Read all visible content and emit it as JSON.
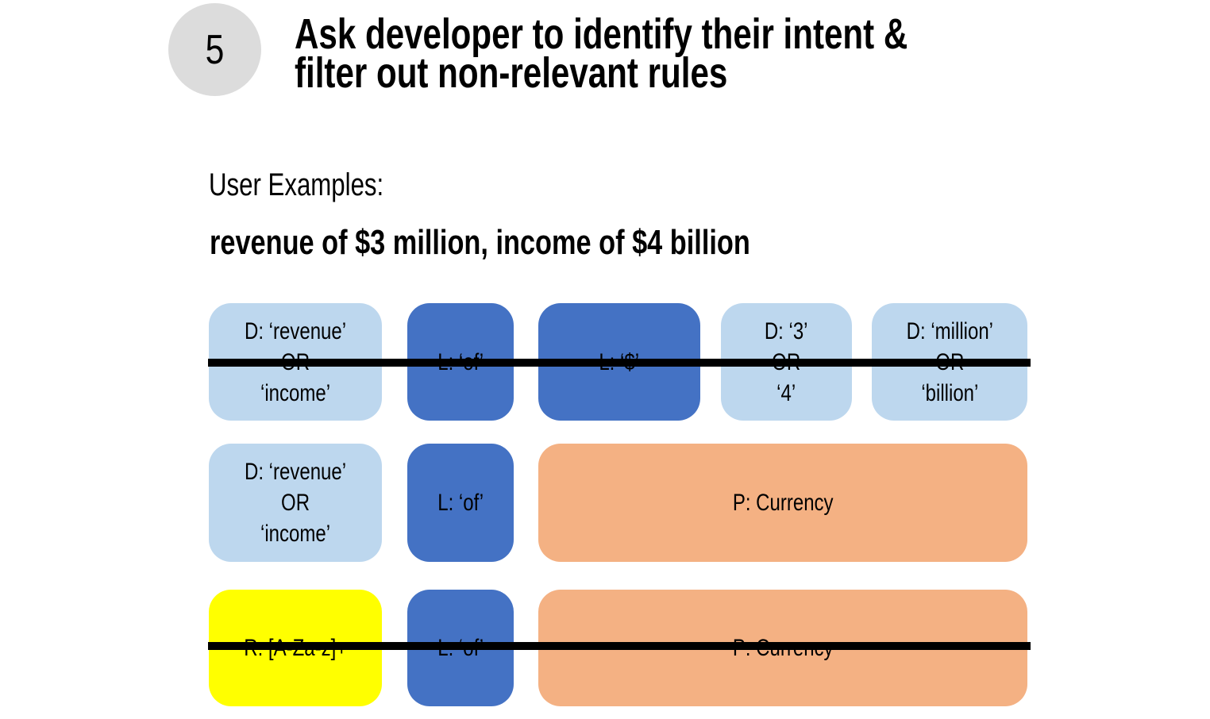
{
  "slide": {
    "step_number": "5",
    "title_line1": "Ask developer to identify their intent &",
    "title_line2": "filter out non-relevant rules",
    "examples_label": "User Examples:",
    "example_text": "revenue of $3 million, income of $4 billion"
  },
  "colors": {
    "dictionary_light_blue": "#BDD7EE",
    "literal_dark_blue": "#4472C4",
    "parser_orange": "#F4B183",
    "regex_yellow": "#FFFF00",
    "step_circle_gray": "#DCDCDC",
    "strikethrough_black": "#000000"
  },
  "diagram": {
    "rows": [
      {
        "struck_out": true,
        "boxes": [
          {
            "type": "dictionary",
            "text": "D: ‘revenue’\nOR\n‘income’"
          },
          {
            "type": "literal",
            "text": "L: ‘of’"
          },
          {
            "type": "literal",
            "text": "L: ‘$’"
          },
          {
            "type": "dictionary",
            "text": "D: ‘3’\nOR\n‘4’"
          },
          {
            "type": "dictionary",
            "text": "D: ‘million’\nOR\n‘billion’"
          }
        ]
      },
      {
        "struck_out": false,
        "boxes": [
          {
            "type": "dictionary",
            "text": "D: ‘revenue’\nOR\n‘income’"
          },
          {
            "type": "literal",
            "text": "L: ‘of’"
          },
          {
            "type": "parser",
            "text": "P: Currency"
          }
        ]
      },
      {
        "struck_out": true,
        "boxes": [
          {
            "type": "regex",
            "text": "R: [A-Za-z]+"
          },
          {
            "type": "literal",
            "text": "L: ‘of’"
          },
          {
            "type": "parser",
            "text": "P: Currency"
          }
        ]
      }
    ]
  }
}
